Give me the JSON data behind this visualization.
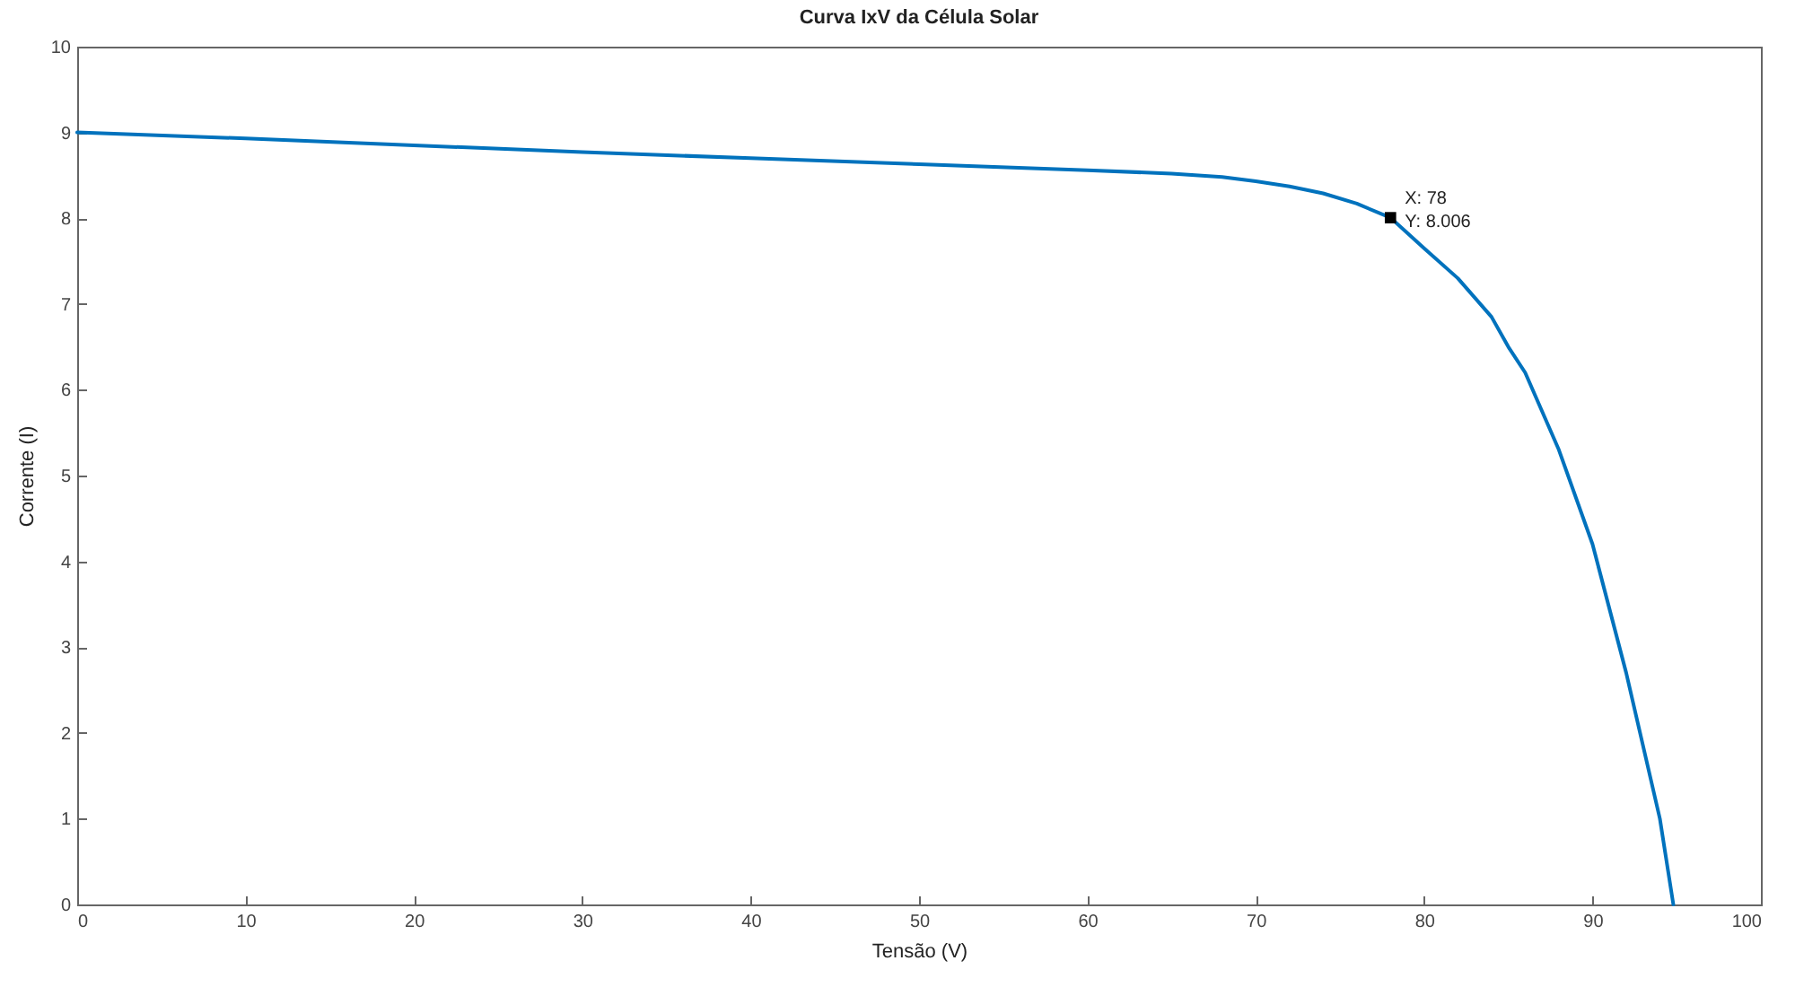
{
  "chart_data": {
    "type": "line",
    "title": "Curva IxV da Célula Solar",
    "xlabel": "Tensão (V)",
    "ylabel": "Corrente (I)",
    "xlim": [
      0,
      100
    ],
    "xticks": [
      0,
      10,
      20,
      30,
      40,
      50,
      60,
      70,
      80,
      90,
      100
    ],
    "ylim": [
      0,
      10
    ],
    "yticks": [
      0,
      1,
      2,
      3,
      4,
      5,
      6,
      7,
      8,
      9,
      10
    ],
    "grid": false,
    "marker": "none",
    "line_style": "solid",
    "series": [
      {
        "color": "#0072bd",
        "x": [
          0,
          10,
          20,
          30,
          40,
          50,
          60,
          65,
          68,
          70,
          72,
          74,
          76,
          78,
          80,
          82,
          84,
          85,
          86,
          88,
          90,
          92,
          94,
          94.8
        ],
        "values": [
          9.0,
          8.93,
          8.85,
          8.77,
          8.7,
          8.63,
          8.56,
          8.52,
          8.48,
          8.43,
          8.37,
          8.29,
          8.17,
          8.006,
          7.65,
          7.3,
          6.85,
          6.5,
          6.2,
          5.3,
          4.2,
          2.7,
          1.0,
          0
        ]
      }
    ],
    "annotations": [
      {
        "text": "X: 78\nY: 8.006",
        "x": 78,
        "y": 8.006
      }
    ]
  }
}
